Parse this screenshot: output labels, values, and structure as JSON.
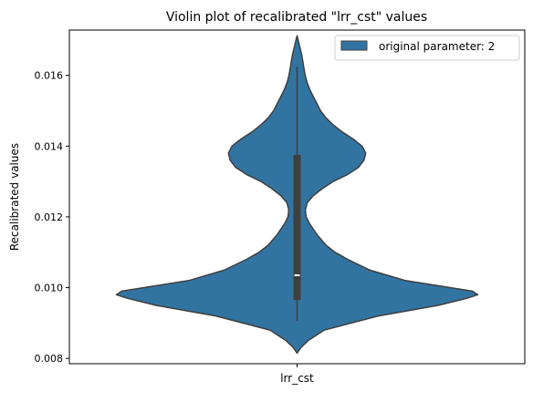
{
  "chart_data": {
    "type": "violin",
    "title": "Violin plot of recalibrated \"lrr_cst\" values",
    "xlabel": "",
    "ylabel": "Recalibrated values",
    "categories": [
      "lrr_cst"
    ],
    "ylim": [
      0.00785,
      0.01728
    ],
    "yticks": [
      0.008,
      0.01,
      0.012,
      0.014,
      0.016
    ],
    "ytick_labels": [
      "0.008",
      "0.010",
      "0.012",
      "0.014",
      "0.016"
    ],
    "legend": {
      "label": "original parameter: 2",
      "position": "top-right"
    },
    "grid": false,
    "series": [
      {
        "name": "original parameter: 2",
        "color": "#3274a1",
        "edge_color": "#3f3f3f",
        "kde": {
          "y": [
            0.00815,
            0.0083,
            0.0085,
            0.0088,
            0.0092,
            0.0095,
            0.0097,
            0.0098,
            0.0099,
            0.01,
            0.0102,
            0.0105,
            0.0108,
            0.011,
            0.0112,
            0.0115,
            0.0118,
            0.012,
            0.0122,
            0.0124,
            0.0126,
            0.0128,
            0.013,
            0.0132,
            0.0134,
            0.0136,
            0.0138,
            0.014,
            0.0142,
            0.0144,
            0.0146,
            0.0148,
            0.015,
            0.0152,
            0.0154,
            0.0156,
            0.0158,
            0.016,
            0.0162,
            0.0164,
            0.0166,
            0.0168,
            0.017,
            0.01712
          ],
          "density": [
            0.0,
            0.02,
            0.06,
            0.15,
            0.45,
            0.78,
            0.94,
            1.0,
            0.97,
            0.85,
            0.6,
            0.4,
            0.28,
            0.21,
            0.16,
            0.11,
            0.07,
            0.05,
            0.046,
            0.056,
            0.09,
            0.14,
            0.2,
            0.28,
            0.34,
            0.37,
            0.38,
            0.36,
            0.31,
            0.25,
            0.2,
            0.16,
            0.13,
            0.11,
            0.09,
            0.07,
            0.055,
            0.045,
            0.038,
            0.032,
            0.025,
            0.015,
            0.006,
            0.0
          ]
        },
        "whisker_low": 0.00905,
        "q1": 0.00965,
        "median": 0.01035,
        "q3": 0.01375,
        "whisker_high": 0.01625
      }
    ]
  }
}
